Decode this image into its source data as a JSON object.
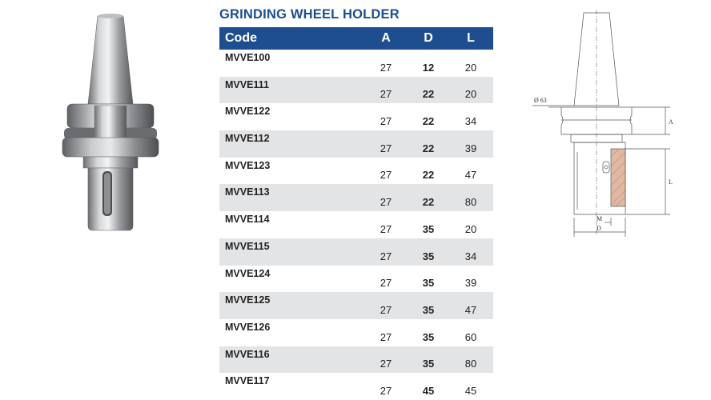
{
  "title": "GRINDING WHEEL HOLDER",
  "table": {
    "headers": {
      "code": "Code",
      "a": "A",
      "d": "D",
      "l": "L"
    },
    "rows": [
      {
        "code": "MVVE100",
        "a": "27",
        "d": "12",
        "l": "20"
      },
      {
        "code": "MVVE111",
        "a": "27",
        "d": "22",
        "l": "20"
      },
      {
        "code": "MVVE122",
        "a": "27",
        "d": "22",
        "l": "34"
      },
      {
        "code": "MVVE112",
        "a": "27",
        "d": "22",
        "l": "39"
      },
      {
        "code": "MVVE123",
        "a": "27",
        "d": "22",
        "l": "47"
      },
      {
        "code": "MVVE113",
        "a": "27",
        "d": "22",
        "l": "80"
      },
      {
        "code": "MVVE114",
        "a": "27",
        "d": "35",
        "l": "20"
      },
      {
        "code": "MVVE115",
        "a": "27",
        "d": "35",
        "l": "34"
      },
      {
        "code": "MVVE124",
        "a": "27",
        "d": "35",
        "l": "39"
      },
      {
        "code": "MVVE125",
        "a": "27",
        "d": "35",
        "l": "47"
      },
      {
        "code": "MVVE126",
        "a": "27",
        "d": "35",
        "l": "60"
      },
      {
        "code": "MVVE116",
        "a": "27",
        "d": "35",
        "l": "80"
      },
      {
        "code": "MVVE117",
        "a": "27",
        "d": "45",
        "l": "45"
      }
    ]
  },
  "drawing": {
    "diameter_label": "Ø 63",
    "label_a": "A",
    "label_l": "L",
    "label_m": "M",
    "label_d": "D"
  },
  "colors": {
    "header_bg": "#1f4e90",
    "title": "#1d4e8f",
    "row_alt": "#e3e4e6"
  }
}
